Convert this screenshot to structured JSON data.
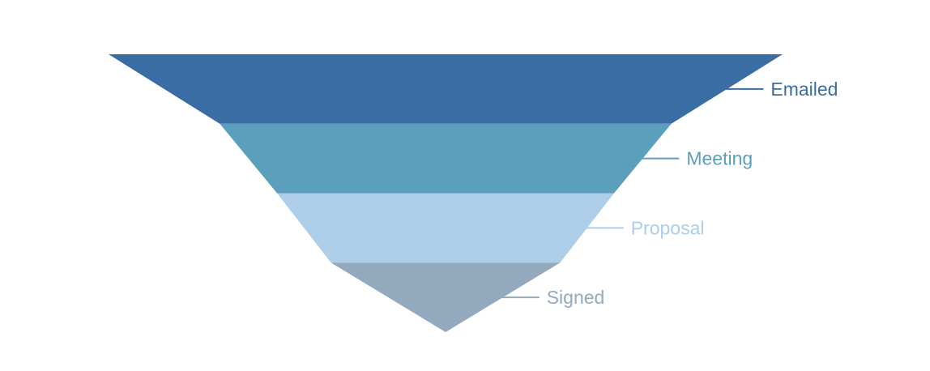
{
  "chart_data": {
    "type": "funnel",
    "orientation": "inverted-pyramid",
    "title": "",
    "background": "#FFFFFF",
    "labels_position": "right-leader-lines",
    "legend": "none",
    "grid": "off",
    "value_basis": "relative width, percent of widest stage (estimated from pixels)",
    "stages": [
      {
        "label": "Emailed",
        "value": 100,
        "color": "#3A6DA3"
      },
      {
        "label": "Meeting",
        "value": 67,
        "color": "#5C9FBD"
      },
      {
        "label": "Proposal",
        "value": 50,
        "color": "#AECDE9"
      },
      {
        "label": "Signed",
        "value": 34,
        "color": "#93A9BE"
      }
    ]
  }
}
